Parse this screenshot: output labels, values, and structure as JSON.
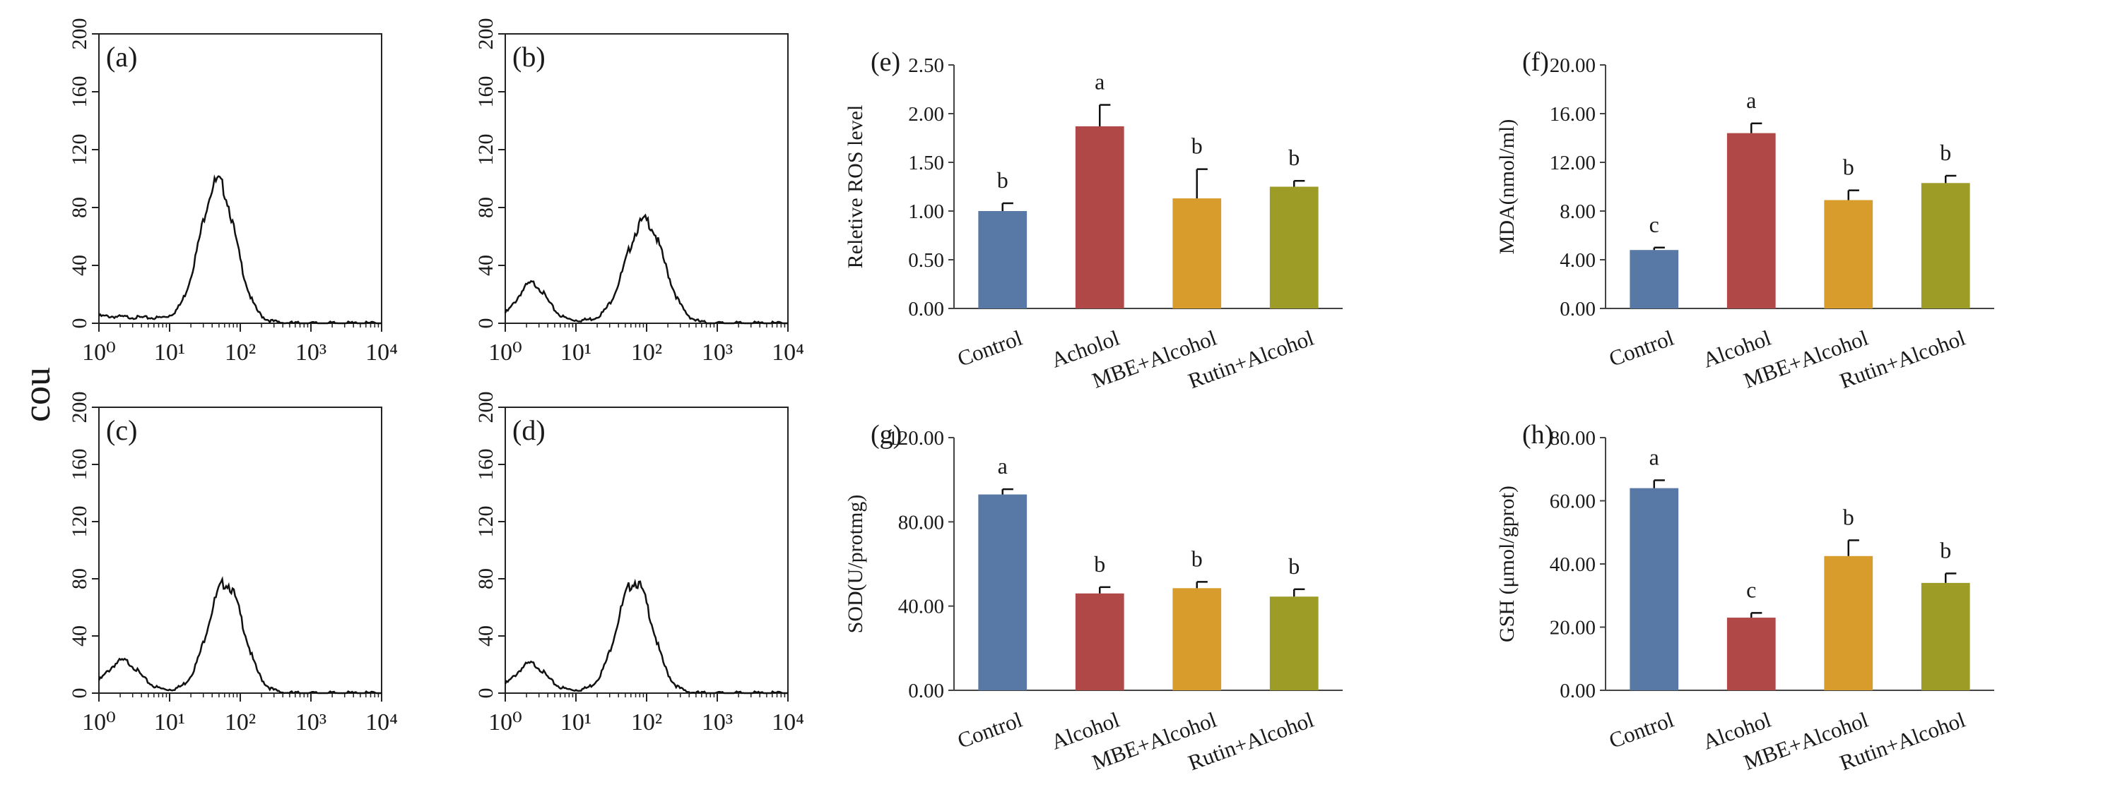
{
  "counts_label": "counts",
  "chart_data": [
    {
      "id": "a",
      "panel_label": "(a)",
      "type": "line",
      "xscale": "log",
      "xlim": [
        1,
        10000
      ],
      "ylim": [
        0,
        200
      ],
      "yticks": [
        "0",
        "40",
        "80",
        "120",
        "160",
        "200"
      ],
      "xticks": [
        "10⁰",
        "10¹",
        "10²",
        "10³",
        "10⁴"
      ],
      "ylabel": "counts",
      "peaks": [
        {
          "center": 48,
          "height": 96,
          "width": 0.25
        }
      ],
      "baseline": 5
    },
    {
      "id": "b",
      "panel_label": "(b)",
      "type": "line",
      "xscale": "log",
      "xlim": [
        1,
        10000
      ],
      "ylim": [
        0,
        200
      ],
      "yticks": [
        "0",
        "40",
        "80",
        "120",
        "160",
        "200"
      ],
      "xticks": [
        "10⁰",
        "10¹",
        "10²",
        "10³",
        "10⁴"
      ],
      "ylabel": "counts",
      "peaks": [
        {
          "center": 2.4,
          "height": 25,
          "width": 0.2
        },
        {
          "center": 95,
          "height": 70,
          "width": 0.27
        }
      ],
      "baseline": 3
    },
    {
      "id": "c",
      "panel_label": "(c)",
      "type": "line",
      "xscale": "log",
      "xlim": [
        1,
        10000
      ],
      "ylim": [
        0,
        200
      ],
      "yticks": [
        "0",
        "40",
        "80",
        "120",
        "160",
        "200"
      ],
      "xticks": [
        "10⁰",
        "10¹",
        "10²",
        "10³",
        "10⁴"
      ],
      "ylabel": "counts",
      "peaks": [
        {
          "center": 2.2,
          "height": 20,
          "width": 0.22
        },
        {
          "center": 62,
          "height": 76,
          "width": 0.25
        }
      ],
      "baseline": 3
    },
    {
      "id": "d",
      "panel_label": "(d)",
      "type": "line",
      "xscale": "log",
      "xlim": [
        1,
        10000
      ],
      "ylim": [
        0,
        200
      ],
      "yticks": [
        "0",
        "40",
        "80",
        "120",
        "160",
        "200"
      ],
      "xticks": [
        "10⁰",
        "10¹",
        "10²",
        "10³",
        "10⁴"
      ],
      "ylabel": "counts",
      "peaks": [
        {
          "center": 2.3,
          "height": 18,
          "width": 0.2
        },
        {
          "center": 68,
          "height": 77,
          "width": 0.25
        }
      ],
      "baseline": 3
    },
    {
      "id": "e",
      "panel_label": "(e)",
      "type": "bar",
      "ylabel": "Reletive ROS level",
      "ylim": [
        0,
        2.5
      ],
      "yticks": [
        "0.00",
        "0.50",
        "1.00",
        "1.50",
        "2.00",
        "2.50"
      ],
      "categories": [
        "Control",
        "Acholol",
        "MBE+Alcohol",
        "Rutin+Alcohol"
      ],
      "values": [
        1.0,
        1.87,
        1.13,
        1.25
      ],
      "errors": [
        0.08,
        0.22,
        0.3,
        0.06
      ],
      "letters": [
        "b",
        "a",
        "b",
        "b"
      ],
      "colors": [
        "#5878a5",
        "#b04848",
        "#d89c2c",
        "#9c9c26"
      ]
    },
    {
      "id": "f",
      "panel_label": "(f)",
      "type": "bar",
      "ylabel": "MDA(nmol/ml)",
      "ylim": [
        0,
        20
      ],
      "yticks": [
        "0.00",
        "4.00",
        "8.00",
        "12.00",
        "16.00",
        "20.00"
      ],
      "categories": [
        "Control",
        "Alcohol",
        "MBE+Alcohol",
        "Rutin+Alcohol"
      ],
      "values": [
        4.8,
        14.4,
        8.9,
        10.3
      ],
      "errors": [
        0.2,
        0.8,
        0.8,
        0.6
      ],
      "letters": [
        "c",
        "a",
        "b",
        "b"
      ],
      "colors": [
        "#5878a5",
        "#b04848",
        "#d89c2c",
        "#9c9c26"
      ]
    },
    {
      "id": "g",
      "panel_label": "(g)",
      "type": "bar",
      "ylabel": "SOD(U/protmg)",
      "ylim": [
        0,
        120
      ],
      "yticks": [
        "0.00",
        "40.00",
        "80.00",
        "120.00"
      ],
      "categories": [
        "Control",
        "Alcohol",
        "MBE+Alcohol",
        "Rutin+Alcohol"
      ],
      "values": [
        93,
        46,
        48.5,
        44.5
      ],
      "errors": [
        2.5,
        3,
        3,
        3.5
      ],
      "letters": [
        "a",
        "b",
        "b",
        "b"
      ],
      "colors": [
        "#5878a5",
        "#b04848",
        "#d89c2c",
        "#9c9c26"
      ]
    },
    {
      "id": "h",
      "panel_label": "(h)",
      "type": "bar",
      "ylabel": "GSH (μmol/gprot)",
      "ylim": [
        0,
        80
      ],
      "yticks": [
        "0.00",
        "20.00",
        "40.00",
        "60.00",
        "80.00"
      ],
      "categories": [
        "Control",
        "Alcohol",
        "MBE+Alcohol",
        "Rutin+Alcohol"
      ],
      "values": [
        64,
        23,
        42.5,
        34
      ],
      "errors": [
        2.5,
        1.5,
        5,
        3
      ],
      "letters": [
        "a",
        "c",
        "b",
        "b"
      ],
      "colors": [
        "#5878a5",
        "#b04848",
        "#d89c2c",
        "#9c9c26"
      ]
    }
  ]
}
